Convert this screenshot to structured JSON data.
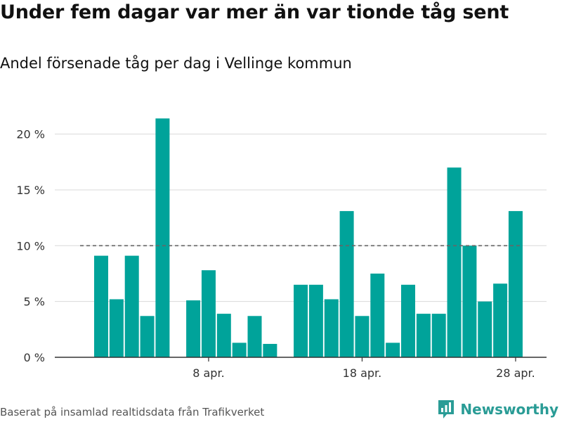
{
  "header": {
    "title": "Under fem dagar var mer än var tionde tåg sent",
    "subtitle": "Andel försenade tåg per dag i Vellinge kommun"
  },
  "footer": {
    "source": "Baserat på insamlad realtidsdata från Trafikverket",
    "brand": "Newsworthy"
  },
  "colors": {
    "bar": "#00a39a",
    "grid": "#d9d9d9",
    "reference_line": "#666666",
    "brand": "#2a9c96"
  },
  "chart_data": {
    "type": "bar",
    "x": [
      "2024-04-01",
      "2024-04-02",
      "2024-04-03",
      "2024-04-04",
      "2024-04-05",
      "2024-04-06",
      "2024-04-07",
      "2024-04-08",
      "2024-04-09",
      "2024-04-10",
      "2024-04-11",
      "2024-04-12",
      "2024-04-13",
      "2024-04-14",
      "2024-04-15",
      "2024-04-16",
      "2024-04-17",
      "2024-04-18",
      "2024-04-19",
      "2024-04-20",
      "2024-04-21",
      "2024-04-22",
      "2024-04-23",
      "2024-04-24",
      "2024-04-25",
      "2024-04-26",
      "2024-04-27",
      "2024-04-28",
      "2024-04-29"
    ],
    "values": [
      9.1,
      5.2,
      9.1,
      3.7,
      21.4,
      null,
      5.1,
      7.8,
      3.9,
      1.3,
      3.7,
      1.2,
      null,
      6.5,
      6.5,
      5.2,
      13.1,
      3.7,
      7.5,
      1.3,
      6.5,
      3.9,
      3.9,
      17.0,
      10.0,
      5.0,
      6.6,
      13.1,
      null
    ],
    "ylim": [
      0,
      23
    ],
    "yticks": [
      0,
      5,
      10,
      15,
      20
    ],
    "ytick_labels": [
      "0 %",
      "5 %",
      "10 %",
      "15 %",
      "20 %"
    ],
    "xtick_labels": [
      {
        "x": "2024-04-08",
        "label": "8 apr."
      },
      {
        "x": "2024-04-18",
        "label": "18 apr."
      },
      {
        "x": "2024-04-28",
        "label": "28 apr."
      }
    ],
    "reference_line": {
      "y": 10,
      "style": "dashed"
    },
    "grid": true,
    "legend": "none"
  }
}
